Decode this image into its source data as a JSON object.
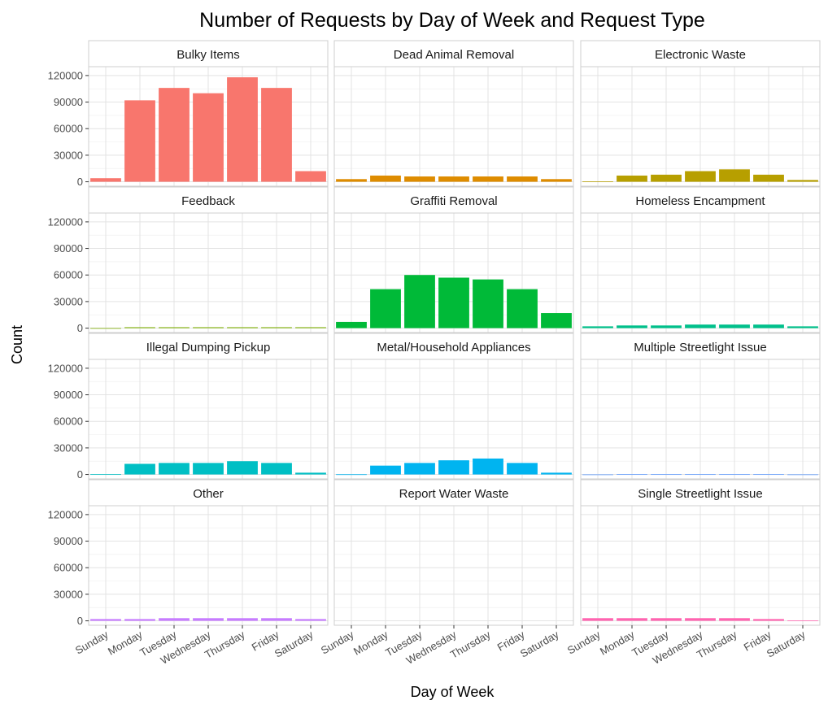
{
  "chart_data": {
    "type": "bar",
    "title": "Number of Requests by Day of Week and Request Type",
    "xlabel": "Day of Week",
    "ylabel": "Count",
    "categories": [
      "Sunday",
      "Monday",
      "Tuesday",
      "Wednesday",
      "Thursday",
      "Friday",
      "Saturday"
    ],
    "yticks": [
      "0",
      "30000",
      "60000",
      "90000",
      "120000"
    ],
    "ylim": [
      -5000,
      130000
    ],
    "grid": true,
    "legend": "none",
    "facets": [
      {
        "name": "Bulky Items",
        "color": "#F8766D",
        "values": [
          4000,
          92000,
          106000,
          100000,
          118000,
          106000,
          12000
        ]
      },
      {
        "name": "Dead Animal Removal",
        "color": "#DE8C00",
        "values": [
          3000,
          7000,
          6000,
          6000,
          6000,
          6000,
          3000
        ]
      },
      {
        "name": "Electronic Waste",
        "color": "#B79F00",
        "values": [
          500,
          7000,
          8000,
          12000,
          14000,
          8000,
          2000
        ]
      },
      {
        "name": "Feedback",
        "color": "#7CAE00",
        "values": [
          50,
          1000,
          1000,
          1000,
          1000,
          1000,
          1000
        ]
      },
      {
        "name": "Graffiti Removal",
        "color": "#00BA38",
        "values": [
          7000,
          44000,
          60000,
          57000,
          55000,
          44000,
          17000
        ]
      },
      {
        "name": "Homeless Encampment",
        "color": "#00C08B",
        "values": [
          2000,
          3000,
          3000,
          4000,
          4000,
          4000,
          2000
        ]
      },
      {
        "name": "Illegal Dumping Pickup",
        "color": "#00BFC4",
        "values": [
          300,
          12000,
          13000,
          13000,
          15000,
          13000,
          2000
        ]
      },
      {
        "name": "Metal/Household Appliances",
        "color": "#00B4F0",
        "values": [
          200,
          10000,
          13000,
          16000,
          18000,
          13000,
          2000
        ]
      },
      {
        "name": "Multiple Streetlight Issue",
        "color": "#619CFF",
        "values": [
          50,
          300,
          300,
          300,
          300,
          300,
          100
        ]
      },
      {
        "name": "Other",
        "color": "#C77CFF",
        "values": [
          2000,
          2000,
          3000,
          3000,
          3000,
          3000,
          2000
        ]
      },
      {
        "name": "Report Water Waste",
        "color": "#F564E3",
        "values": [
          0,
          0,
          0,
          0,
          0,
          0,
          0
        ]
      },
      {
        "name": "Single Streetlight Issue",
        "color": "#FF64B0",
        "values": [
          3000,
          3000,
          3000,
          3000,
          3000,
          2000,
          500
        ]
      }
    ]
  }
}
